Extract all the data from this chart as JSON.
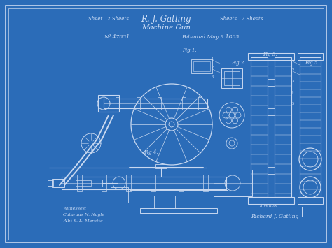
{
  "bg_color": "#2B6CB8",
  "line_color": "#C8D8F0",
  "text_color": "#D0E0F8",
  "title_left": "Sheet . 2 Sheets",
  "title_main": "R. J. Gatling",
  "title_right": "Sheets . 2 Sheets",
  "title_line2": "Machine Gun",
  "patent_no": "Nº 47631.",
  "patented": "Patented May 9 1865",
  "witnesses_label": "Witnesses:",
  "witness1": "Caturaus N. Nagle",
  "witness2": "Albt S. L. Marotte",
  "inventor_label": "Inventor",
  "inventor_sig": "Richard J. Gatling",
  "fig1_label": "Fig 1.",
  "fig2_label": "Fig 2.",
  "fig3_label": "Fig 3.",
  "fig4_label": "Fig 4.",
  "fig5_label": "Fig 5.",
  "figsize": [
    4.74,
    3.55
  ],
  "dpi": 100
}
